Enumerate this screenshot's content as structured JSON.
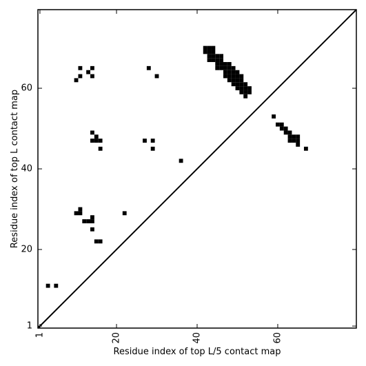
{
  "chart_data": {
    "type": "scatter",
    "xlabel": "Residue index of top L/5 contact map",
    "ylabel": "Residue index of top L contact map",
    "xlim": [
      0.5,
      79.5
    ],
    "ylim": [
      0.5,
      79.5
    ],
    "xticks": [
      1,
      20,
      40,
      60
    ],
    "yticks": [
      1,
      20,
      40,
      60
    ],
    "diagonal": true,
    "marker": "square",
    "series": [
      {
        "color": "#000000",
        "x": [
          10,
          11,
          11,
          13,
          14,
          14,
          14,
          14,
          15,
          16,
          15,
          16,
          28,
          30,
          27,
          29,
          29,
          36,
          42,
          42,
          43,
          43,
          43,
          43,
          44,
          44,
          44,
          44,
          45,
          45,
          45,
          45,
          46,
          46,
          46,
          46,
          47,
          47,
          47,
          47,
          48,
          48,
          48,
          48,
          48,
          49,
          49,
          49,
          49,
          49,
          50,
          50,
          50,
          50,
          50,
          51,
          51,
          51,
          51,
          51,
          52,
          52,
          52,
          52,
          53,
          53,
          59,
          60,
          61,
          61,
          62,
          62,
          63,
          63,
          64,
          65,
          63,
          64,
          65,
          65,
          67,
          3,
          5,
          10,
          11,
          11,
          12,
          13,
          14,
          14,
          14,
          15,
          16,
          22
        ],
        "values": [
          62,
          65,
          63,
          64,
          65,
          63,
          49,
          47,
          47,
          47,
          48,
          45,
          65,
          63,
          47,
          47,
          45,
          42,
          69,
          70,
          67,
          68,
          69,
          70,
          67,
          68,
          69,
          70,
          65,
          66,
          67,
          68,
          65,
          66,
          67,
          68,
          63,
          64,
          65,
          66,
          62,
          63,
          64,
          65,
          66,
          61,
          62,
          63,
          64,
          65,
          60,
          61,
          62,
          63,
          64,
          59,
          60,
          61,
          62,
          63,
          58,
          59,
          60,
          61,
          59,
          60,
          53,
          51,
          51,
          50,
          50,
          49,
          49,
          48,
          48,
          48,
          47,
          47,
          47,
          46,
          45,
          11,
          11,
          29,
          29,
          30,
          27,
          27,
          27,
          28,
          25,
          22,
          22,
          29
        ]
      }
    ]
  }
}
